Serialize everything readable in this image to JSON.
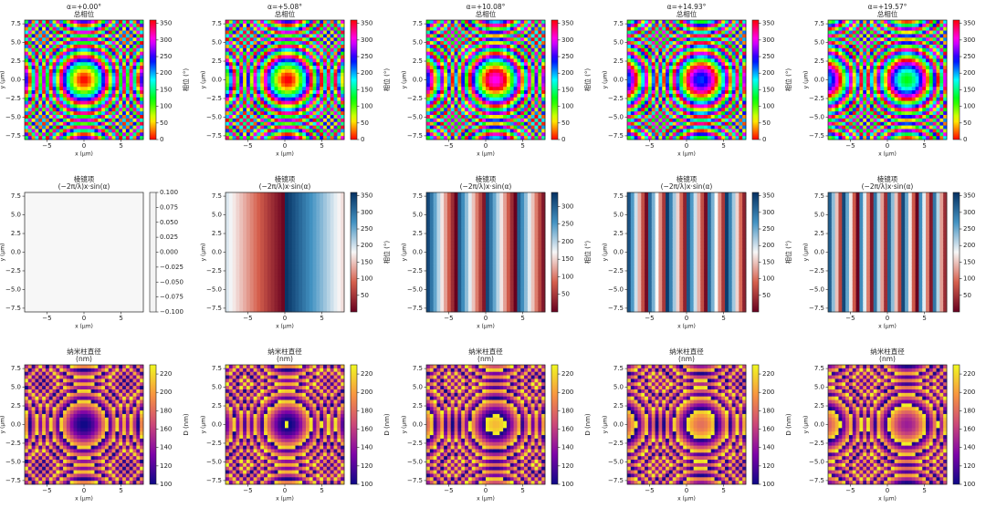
{
  "chart_data": [
    {
      "type": "heatmap",
      "title": "α=+0.00°",
      "subtitle": "总相位",
      "xlabel": "x (μm)",
      "ylabel": "y (μm)",
      "colormap": "hsv",
      "colorbar_label": "相位 (°)",
      "clim": [
        0,
        360
      ],
      "cticks": [
        0,
        50,
        100,
        150,
        200,
        250,
        300,
        350
      ],
      "xlim": [
        -8,
        8
      ],
      "ylim": [
        -8,
        8
      ],
      "xticks": [
        {
          "value": -5,
          "label": "−5"
        },
        0,
        5
      ],
      "yticks": [
        {
          "value": -7.5,
          "label": "−7.5"
        },
        {
          "value": -5,
          "label": "−5.0"
        },
        {
          "value": -2.5,
          "label": "−2.5"
        },
        {
          "value": 0,
          "label": "0.0"
        },
        2.5,
        {
          "value": 5,
          "label": "5.0"
        },
        7.5
      ]
    },
    {
      "type": "heatmap",
      "title": "α=+5.08°",
      "subtitle": "总相位",
      "xlabel": "x (μm)",
      "ylabel": "y (μm)",
      "colormap": "hsv",
      "colorbar_label": "相位 (°)",
      "clim": [
        0,
        360
      ],
      "cticks": [
        0,
        50,
        100,
        150,
        200,
        250,
        300,
        350
      ],
      "xlim": [
        -8,
        8
      ],
      "ylim": [
        -8,
        8
      ],
      "xticks": [
        {
          "value": -5,
          "label": "−5"
        },
        0,
        5
      ],
      "yticks": [
        {
          "value": -7.5,
          "label": "−7.5"
        },
        {
          "value": -5,
          "label": "−5.0"
        },
        {
          "value": -2.5,
          "label": "−2.5"
        },
        {
          "value": 0,
          "label": "0.0"
        },
        2.5,
        {
          "value": 5,
          "label": "5.0"
        },
        7.5
      ]
    },
    {
      "type": "heatmap",
      "title": "α=+10.08°",
      "subtitle": "总相位",
      "xlabel": "x (μm)",
      "ylabel": "y (μm)",
      "colormap": "hsv",
      "colorbar_label": "相位 (°)",
      "clim": [
        0,
        360
      ],
      "cticks": [
        0,
        50,
        100,
        150,
        200,
        250,
        300,
        350
      ],
      "xlim": [
        -8,
        8
      ],
      "ylim": [
        -8,
        8
      ],
      "xticks": [
        {
          "value": -5,
          "label": "−5"
        },
        0,
        5
      ],
      "yticks": [
        {
          "value": -7.5,
          "label": "−7.5"
        },
        {
          "value": -5,
          "label": "−5.0"
        },
        {
          "value": -2.5,
          "label": "−2.5"
        },
        {
          "value": 0,
          "label": "0.0"
        },
        2.5,
        {
          "value": 5,
          "label": "5.0"
        },
        7.5
      ]
    },
    {
      "type": "heatmap",
      "title": "α=+14.93°",
      "subtitle": "总相位",
      "xlabel": "x (μm)",
      "ylabel": "y (μm)",
      "colormap": "hsv",
      "colorbar_label": "相位 (°)",
      "clim": [
        0,
        360
      ],
      "cticks": [
        0,
        50,
        100,
        150,
        200,
        250,
        300,
        350
      ],
      "xlim": [
        -8,
        8
      ],
      "ylim": [
        -8,
        8
      ],
      "xticks": [
        {
          "value": -5,
          "label": "−5"
        },
        0,
        5
      ],
      "yticks": [
        {
          "value": -7.5,
          "label": "−7.5"
        },
        {
          "value": -5,
          "label": "−5.0"
        },
        {
          "value": -2.5,
          "label": "−2.5"
        },
        {
          "value": 0,
          "label": "0.0"
        },
        2.5,
        {
          "value": 5,
          "label": "5.0"
        },
        7.5
      ]
    },
    {
      "type": "heatmap",
      "title": "α=+19.57°",
      "subtitle": "总相位",
      "xlabel": "x (μm)",
      "ylabel": "y (μm)",
      "colormap": "hsv",
      "colorbar_label": "相位 (°)",
      "clim": [
        0,
        360
      ],
      "cticks": [
        0,
        50,
        100,
        150,
        200,
        250,
        300,
        350
      ],
      "xlim": [
        -8,
        8
      ],
      "ylim": [
        -8,
        8
      ],
      "xticks": [
        {
          "value": -5,
          "label": "−5"
        },
        0,
        5
      ],
      "yticks": [
        {
          "value": -7.5,
          "label": "−7.5"
        },
        {
          "value": -5,
          "label": "−5.0"
        },
        {
          "value": -2.5,
          "label": "−2.5"
        },
        {
          "value": 0,
          "label": "0.0"
        },
        2.5,
        {
          "value": 5,
          "label": "5.0"
        },
        7.5
      ]
    },
    {
      "type": "heatmap",
      "title": "棱镜项",
      "subtitle": "(−2π/λ)x·sin(α)",
      "xlabel": "x (μm)",
      "ylabel": "y (μm)",
      "colormap": "RdBu",
      "clim": [
        -0.1,
        0.1
      ],
      "cticks": [
        {
          "value": -0.1,
          "label": "−0.100"
        },
        {
          "value": -0.075,
          "label": "−0.075"
        },
        {
          "value": -0.05,
          "label": "−0.050"
        },
        {
          "value": -0.025,
          "label": "−0.025"
        },
        {
          "value": 0,
          "label": "0.000"
        },
        0.025,
        {
          "value": 0.05,
          "label": "0.050"
        },
        0.075,
        {
          "value": 0.1,
          "label": "0.100"
        }
      ],
      "xlim": [
        -8,
        8
      ],
      "ylim": [
        -8,
        8
      ],
      "xticks": [
        {
          "value": -5,
          "label": "−5"
        },
        0,
        5
      ],
      "yticks": [
        {
          "value": -7.5,
          "label": "−7.5"
        },
        {
          "value": -5,
          "label": "−5.0"
        },
        {
          "value": -2.5,
          "label": "−2.5"
        },
        {
          "value": 0,
          "label": "0.0"
        },
        2.5,
        {
          "value": 5,
          "label": "5.0"
        },
        7.5
      ]
    },
    {
      "type": "heatmap",
      "title": "棱镜项",
      "subtitle": "(−2π/λ)x·sin(α)",
      "xlabel": "x (μm)",
      "ylabel": "y (μm)",
      "colormap": "RdBu",
      "colorbar_label": "相位 (°)",
      "clim": [
        0,
        360
      ],
      "cticks": [
        50,
        100,
        150,
        200,
        250,
        300,
        350
      ],
      "xlim": [
        -8,
        8
      ],
      "ylim": [
        -8,
        8
      ],
      "xticks": [
        {
          "value": -5,
          "label": "−5"
        },
        0,
        5
      ],
      "yticks": [
        {
          "value": -7.5,
          "label": "−7.5"
        },
        {
          "value": -5,
          "label": "−5.0"
        },
        {
          "value": -2.5,
          "label": "−2.5"
        },
        {
          "value": 0,
          "label": "0.0"
        },
        2.5,
        {
          "value": 5,
          "label": "5.0"
        },
        7.5
      ]
    },
    {
      "type": "heatmap",
      "title": "棱镜项",
      "subtitle": "(−2π/λ)x·sin(α)",
      "xlabel": "x (μm)",
      "ylabel": "y (μm)",
      "colormap": "RdBu",
      "colorbar_label": "相位 (°)",
      "clim": [
        0,
        340
      ],
      "cticks": [
        50,
        100,
        150,
        200,
        250,
        300
      ],
      "xlim": [
        -8,
        8
      ],
      "ylim": [
        -8,
        8
      ],
      "xticks": [
        {
          "value": -5,
          "label": "−5"
        },
        0,
        5
      ],
      "yticks": [
        {
          "value": -7.5,
          "label": "−7.5"
        },
        {
          "value": -5,
          "label": "−5.0"
        },
        {
          "value": -2.5,
          "label": "−2.5"
        },
        {
          "value": 0,
          "label": "0.0"
        },
        2.5,
        {
          "value": 5,
          "label": "5.0"
        },
        7.5
      ]
    },
    {
      "type": "heatmap",
      "title": "棱镜项",
      "subtitle": "(−2π/λ)x·sin(α)",
      "xlabel": "x (μm)",
      "ylabel": "y (μm)",
      "colormap": "RdBu",
      "colorbar_label": "相位 (°)",
      "clim": [
        0,
        360
      ],
      "cticks": [
        50,
        100,
        150,
        200,
        250,
        300,
        350
      ],
      "xlim": [
        -8,
        8
      ],
      "ylim": [
        -8,
        8
      ],
      "xticks": [
        {
          "value": -5,
          "label": "−5"
        },
        0,
        5
      ],
      "yticks": [
        {
          "value": -7.5,
          "label": "−7.5"
        },
        {
          "value": -5,
          "label": "−5.0"
        },
        {
          "value": -2.5,
          "label": "−2.5"
        },
        {
          "value": 0,
          "label": "0.0"
        },
        2.5,
        {
          "value": 5,
          "label": "5.0"
        },
        7.5
      ]
    },
    {
      "type": "heatmap",
      "title": "棱镜项",
      "subtitle": "(−2π/λ)x·sin(α)",
      "xlabel": "x (μm)",
      "ylabel": "y (μm)",
      "colormap": "RdBu",
      "colorbar_label": "相位 (°)",
      "clim": [
        0,
        360
      ],
      "cticks": [
        50,
        100,
        150,
        200,
        250,
        300,
        350
      ],
      "xlim": [
        -8,
        8
      ],
      "ylim": [
        -8,
        8
      ],
      "xticks": [
        {
          "value": -5,
          "label": "−5"
        },
        0,
        5
      ],
      "yticks": [
        {
          "value": -7.5,
          "label": "−7.5"
        },
        {
          "value": -5,
          "label": "−5.0"
        },
        {
          "value": -2.5,
          "label": "−2.5"
        },
        {
          "value": 0,
          "label": "0.0"
        },
        2.5,
        {
          "value": 5,
          "label": "5.0"
        },
        7.5
      ]
    },
    {
      "type": "heatmap",
      "title": "纳米柱直径",
      "subtitle": "(nm)",
      "xlabel": "x (μm)",
      "ylabel": "y (μm)",
      "colormap": "plasma",
      "colorbar_label": "D (nm)",
      "clim": [
        100,
        230
      ],
      "cticks": [
        100,
        120,
        140,
        160,
        180,
        200,
        220
      ],
      "xlim": [
        -8,
        8
      ],
      "ylim": [
        -8,
        8
      ],
      "xticks": [
        {
          "value": -5,
          "label": "−5"
        },
        0,
        5
      ],
      "yticks": [
        {
          "value": -7.5,
          "label": "−7.5"
        },
        {
          "value": -5,
          "label": "−5.0"
        },
        {
          "value": -2.5,
          "label": "−2.5"
        },
        {
          "value": 0,
          "label": "0.0"
        },
        2.5,
        {
          "value": 5,
          "label": "5.0"
        },
        7.5
      ]
    },
    {
      "type": "heatmap",
      "title": "纳米柱直径",
      "subtitle": "(nm)",
      "xlabel": "x (μm)",
      "ylabel": "y (μm)",
      "colormap": "plasma",
      "colorbar_label": "D (nm)",
      "clim": [
        100,
        230
      ],
      "cticks": [
        100,
        120,
        140,
        160,
        180,
        200,
        220
      ],
      "xlim": [
        -8,
        8
      ],
      "ylim": [
        -8,
        8
      ],
      "xticks": [
        {
          "value": -5,
          "label": "−5"
        },
        0,
        5
      ],
      "yticks": [
        {
          "value": -7.5,
          "label": "−7.5"
        },
        {
          "value": -5,
          "label": "−5.0"
        },
        {
          "value": -2.5,
          "label": "−2.5"
        },
        {
          "value": 0,
          "label": "0.0"
        },
        2.5,
        {
          "value": 5,
          "label": "5.0"
        },
        7.5
      ]
    },
    {
      "type": "heatmap",
      "title": "纳米柱直径",
      "subtitle": "(nm)",
      "xlabel": "x (μm)",
      "ylabel": "y (μm)",
      "colormap": "plasma",
      "colorbar_label": "D (nm)",
      "clim": [
        100,
        230
      ],
      "cticks": [
        100,
        120,
        140,
        160,
        180,
        200,
        220
      ],
      "xlim": [
        -8,
        8
      ],
      "ylim": [
        -8,
        8
      ],
      "xticks": [
        {
          "value": -5,
          "label": "−5"
        },
        0,
        5
      ],
      "yticks": [
        {
          "value": -7.5,
          "label": "−7.5"
        },
        {
          "value": -5,
          "label": "−5.0"
        },
        {
          "value": -2.5,
          "label": "−2.5"
        },
        {
          "value": 0,
          "label": "0.0"
        },
        2.5,
        {
          "value": 5,
          "label": "5.0"
        },
        7.5
      ]
    },
    {
      "type": "heatmap",
      "title": "纳米柱直径",
      "subtitle": "(nm)",
      "xlabel": "x (μm)",
      "ylabel": "y (μm)",
      "colormap": "plasma",
      "colorbar_label": "D (nm)",
      "clim": [
        100,
        230
      ],
      "cticks": [
        100,
        120,
        140,
        160,
        180,
        200,
        220
      ],
      "xlim": [
        -8,
        8
      ],
      "ylim": [
        -8,
        8
      ],
      "xticks": [
        {
          "value": -5,
          "label": "−5"
        },
        0,
        5
      ],
      "yticks": [
        {
          "value": -7.5,
          "label": "−7.5"
        },
        {
          "value": -5,
          "label": "−5.0"
        },
        {
          "value": -2.5,
          "label": "−2.5"
        },
        {
          "value": 0,
          "label": "0.0"
        },
        2.5,
        {
          "value": 5,
          "label": "5.0"
        },
        7.5
      ]
    },
    {
      "type": "heatmap",
      "title": "纳米柱直径",
      "subtitle": "(nm)",
      "xlabel": "x (μm)",
      "ylabel": "y (μm)",
      "colormap": "plasma",
      "colorbar_label": "D (nm)",
      "clim": [
        100,
        230
      ],
      "cticks": [
        100,
        120,
        140,
        160,
        180,
        200,
        220
      ],
      "xlim": [
        -8,
        8
      ],
      "ylim": [
        -8,
        8
      ],
      "xticks": [
        {
          "value": -5,
          "label": "−5"
        },
        0,
        5
      ],
      "yticks": [
        {
          "value": -7.5,
          "label": "−7.5"
        },
        {
          "value": -5,
          "label": "−5.0"
        },
        {
          "value": -2.5,
          "label": "−2.5"
        },
        {
          "value": 0,
          "label": "0.0"
        },
        2.5,
        {
          "value": 5,
          "label": "5.0"
        },
        7.5
      ]
    }
  ]
}
